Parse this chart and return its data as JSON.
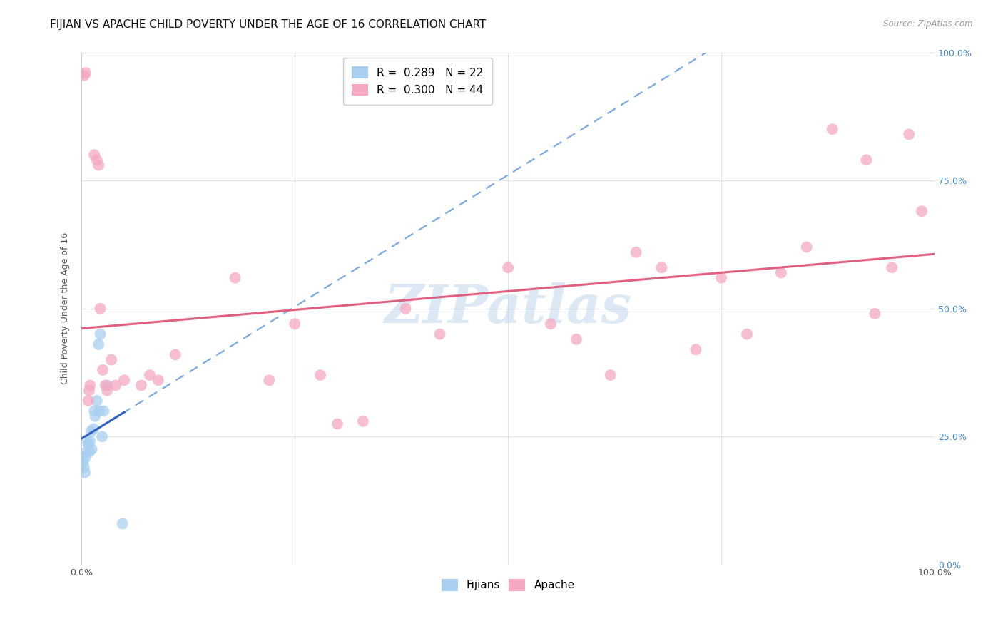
{
  "title": "FIJIAN VS APACHE CHILD POVERTY UNDER THE AGE OF 16 CORRELATION CHART",
  "source": "Source: ZipAtlas.com",
  "ylabel": "Child Poverty Under the Age of 16",
  "watermark": "ZIPatlas",
  "fijian_R": 0.289,
  "fijian_N": 22,
  "apache_R": 0.3,
  "apache_N": 44,
  "fijian_color": "#a8cff0",
  "apache_color": "#f5a8c0",
  "fijian_line_color": "#3060c0",
  "fijian_dash_color": "#7aaae0",
  "apache_line_color": "#e06080",
  "background_color": "#ffffff",
  "grid_color": "#e0e0e0",
  "fijians_x": [
    0.2,
    0.3,
    0.4,
    0.5,
    0.6,
    0.7,
    0.8,
    0.9,
    1.0,
    1.1,
    1.2,
    1.4,
    1.5,
    1.6,
    1.8,
    2.0,
    2.1,
    2.2,
    2.4,
    2.6,
    3.0,
    4.8
  ],
  "fijians_y": [
    20.0,
    19.0,
    18.0,
    21.0,
    22.0,
    24.0,
    23.5,
    22.0,
    24.0,
    26.0,
    22.5,
    26.5,
    30.0,
    29.0,
    32.0,
    43.0,
    30.0,
    45.0,
    25.0,
    30.0,
    35.0,
    8.0
  ],
  "apache_x": [
    0.3,
    0.5,
    0.8,
    0.9,
    1.0,
    1.5,
    1.8,
    2.0,
    2.2,
    2.5,
    2.8,
    3.0,
    3.5,
    4.0,
    5.0,
    7.0,
    8.0,
    9.0,
    11.0,
    18.0,
    22.0,
    25.0,
    28.0,
    30.0,
    33.0,
    38.0,
    42.0,
    50.0,
    55.0,
    58.0,
    62.0,
    65.0,
    68.0,
    72.0,
    75.0,
    78.0,
    82.0,
    85.0,
    88.0,
    92.0,
    93.0,
    95.0,
    97.0,
    98.5
  ],
  "apache_y": [
    95.5,
    96.0,
    32.0,
    34.0,
    35.0,
    80.0,
    79.0,
    78.0,
    50.0,
    38.0,
    35.0,
    34.0,
    40.0,
    35.0,
    36.0,
    35.0,
    37.0,
    36.0,
    41.0,
    56.0,
    36.0,
    47.0,
    37.0,
    27.5,
    28.0,
    50.0,
    45.0,
    58.0,
    47.0,
    44.0,
    37.0,
    61.0,
    58.0,
    42.0,
    56.0,
    45.0,
    57.0,
    62.0,
    85.0,
    79.0,
    49.0,
    58.0,
    84.0,
    69.0
  ],
  "xlim": [
    0,
    100
  ],
  "ylim": [
    0,
    100
  ],
  "title_fontsize": 11,
  "axis_fontsize": 9,
  "tick_fontsize": 9,
  "legend_fontsize": 11
}
